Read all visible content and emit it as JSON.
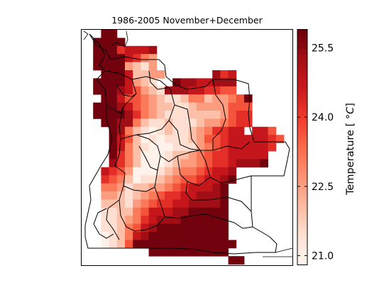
{
  "chart_data": {
    "type": "heatmap",
    "title": "1986-2005 November+December",
    "colorbar": {
      "label": "Temperature [",
      "label_unit": "$^\\circ C$]",
      "ticks": [
        21.0,
        22.5,
        24.0,
        25.5
      ],
      "tick_labels": [
        "21.0",
        "22.5",
        "24.0",
        "25.5"
      ],
      "range": [
        20.8,
        25.9
      ],
      "colormap": "Reds"
    },
    "grid": {
      "rows": 29,
      "cols": 26,
      "note_legend": ". = no data, 0-9 = temperature bins from 20.9 to 25.8 degC",
      "bins": [
        20.9,
        21.45,
        22.0,
        22.55,
        23.1,
        23.65,
        24.2,
        24.75,
        25.3,
        25.8
      ],
      "cells": [
        "..99......................",
        ".9999.....................",
        ".99967778.................",
        ".99997643.................",
        ".99993213.................",
        "..99972233......867.......",
        ".99997321..98877888.......",
        ".999875321888776655.......",
        "..9975543211244233459.....",
        ".99987543221123333555.....",
        ".99998643211122223566.....",
        "..9988421121112334566.....",
        "...98421012112346677.775..",
        "...9752010111235567777765.",
        "...974210001113456777776..",
        "...96420001223456677777...",
        "...86420001233456678889...",
        "..76530001234456778.......",
        "..65420112345567789.......",
        "..4431223345677789........",
        "..3321234566778889........",
        "..2221345667788889........",
        "..1122457778899999........",
        "..1123467888999999........",
        "..1124578999999999........",
        "..0124789999999999........",
        "..01259999999999999.......",
        "........9999999999........",
        "..................99......"
      ]
    }
  }
}
